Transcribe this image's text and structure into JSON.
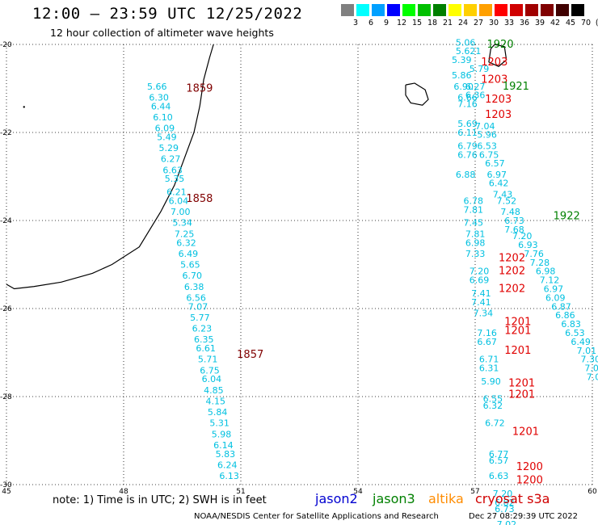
{
  "header": {
    "title": "12:00 – 23:59 UTC 12/25/2022",
    "subtitle": "12 hour collection of altimeter wave heights"
  },
  "colorbar": {
    "unit_label": "(ft)",
    "bins": [
      {
        "label": "3",
        "color": "#808080"
      },
      {
        "label": "6",
        "color": "#00ffff"
      },
      {
        "label": "9",
        "color": "#00a0ff"
      },
      {
        "label": "12",
        "color": "#0000ff"
      },
      {
        "label": "15",
        "color": "#00ff00"
      },
      {
        "label": "18",
        "color": "#00c000"
      },
      {
        "label": "21",
        "color": "#008000"
      },
      {
        "label": "24",
        "color": "#ffff00"
      },
      {
        "label": "27",
        "color": "#ffd000"
      },
      {
        "label": "30",
        "color": "#ffa000"
      },
      {
        "label": "33",
        "color": "#ff0000"
      },
      {
        "label": "36",
        "color": "#d00000"
      },
      {
        "label": "39",
        "color": "#a00000"
      },
      {
        "label": "42",
        "color": "#800000"
      },
      {
        "label": "45",
        "color": "#400000"
      },
      {
        "label": "70",
        "color": "#000000"
      }
    ]
  },
  "map": {
    "lon_range": [
      45,
      60
    ],
    "lat_range": [
      -30,
      -20
    ],
    "lon_ticks": [
      "45",
      "48",
      "51",
      "54",
      "57",
      "60"
    ],
    "lat_ticks": [
      "-20",
      "-22",
      "-24",
      "-26",
      "-28",
      "-30"
    ],
    "colors": {
      "cyan": "#00c0e0",
      "darkred": "#800000",
      "red": "#e00000",
      "green": "#008000"
    },
    "time_labels": [
      {
        "text": "1859",
        "lon": 49.6,
        "lat": -21.0,
        "color": "darkred"
      },
      {
        "text": "1858",
        "lon": 49.6,
        "lat": -23.5,
        "color": "darkred"
      },
      {
        "text": "1857",
        "lon": 50.9,
        "lat": -27.05,
        "color": "darkred"
      },
      {
        "text": "1920",
        "lon": 57.3,
        "lat": -20.0,
        "color": "green"
      },
      {
        "text": "1203",
        "lon": 57.15,
        "lat": -20.4,
        "color": "red"
      },
      {
        "text": "1203",
        "lon": 57.15,
        "lat": -20.8,
        "color": "red"
      },
      {
        "text": "1921",
        "lon": 57.7,
        "lat": -20.95,
        "color": "green"
      },
      {
        "text": "1203",
        "lon": 57.25,
        "lat": -21.25,
        "color": "red"
      },
      {
        "text": "1203",
        "lon": 57.25,
        "lat": -21.6,
        "color": "red"
      },
      {
        "text": "1922",
        "lon": 59.0,
        "lat": -23.9,
        "color": "green"
      },
      {
        "text": "1202",
        "lon": 57.6,
        "lat": -24.85,
        "color": "red"
      },
      {
        "text": "1202",
        "lon": 57.6,
        "lat": -25.15,
        "color": "red"
      },
      {
        "text": "1202",
        "lon": 57.6,
        "lat": -25.55,
        "color": "red"
      },
      {
        "text": "1201",
        "lon": 57.75,
        "lat": -26.3,
        "color": "red"
      },
      {
        "text": "1201",
        "lon": 57.75,
        "lat": -26.5,
        "color": "red"
      },
      {
        "text": "1201",
        "lon": 57.75,
        "lat": -26.95,
        "color": "red"
      },
      {
        "text": "1201",
        "lon": 57.85,
        "lat": -27.7,
        "color": "red"
      },
      {
        "text": "1201",
        "lon": 57.85,
        "lat": -27.95,
        "color": "red"
      },
      {
        "text": "1201",
        "lon": 57.95,
        "lat": -28.8,
        "color": "red"
      },
      {
        "text": "1200",
        "lon": 58.05,
        "lat": -29.6,
        "color": "red"
      },
      {
        "text": "1200",
        "lon": 58.05,
        "lat": -29.9,
        "color": "red"
      }
    ],
    "wave_heights": [
      {
        "text": "5.66",
        "lon": 48.6,
        "lat": -20.95
      },
      {
        "text": "6.30",
        "lon": 48.65,
        "lat": -21.2
      },
      {
        "text": "6.44",
        "lon": 48.7,
        "lat": -21.4
      },
      {
        "text": "6.10",
        "lon": 48.75,
        "lat": -21.65
      },
      {
        "text": "6.09",
        "lon": 48.8,
        "lat": -21.9
      },
      {
        "text": "5.49",
        "lon": 48.85,
        "lat": -22.1
      },
      {
        "text": "5.29",
        "lon": 48.9,
        "lat": -22.35
      },
      {
        "text": "6.27",
        "lon": 48.95,
        "lat": -22.6
      },
      {
        "text": "6.63",
        "lon": 49.0,
        "lat": -22.85
      },
      {
        "text": "5.35",
        "lon": 49.05,
        "lat": -23.05
      },
      {
        "text": "6.21",
        "lon": 49.1,
        "lat": -23.35
      },
      {
        "text": "6.04",
        "lon": 49.15,
        "lat": -23.55
      },
      {
        "text": "7.00",
        "lon": 49.2,
        "lat": -23.8
      },
      {
        "text": "5.34",
        "lon": 49.25,
        "lat": -24.05
      },
      {
        "text": "7.25",
        "lon": 49.3,
        "lat": -24.3
      },
      {
        "text": "6.32",
        "lon": 49.35,
        "lat": -24.5
      },
      {
        "text": "6.49",
        "lon": 49.4,
        "lat": -24.75
      },
      {
        "text": "5.65",
        "lon": 49.45,
        "lat": -25.0
      },
      {
        "text": "6.70",
        "lon": 49.5,
        "lat": -25.25
      },
      {
        "text": "6.38",
        "lon": 49.55,
        "lat": -25.5
      },
      {
        "text": "6.56",
        "lon": 49.6,
        "lat": -25.75
      },
      {
        "text": "7.07",
        "lon": 49.65,
        "lat": -25.95
      },
      {
        "text": "5.77",
        "lon": 49.7,
        "lat": -26.2
      },
      {
        "text": "6.23",
        "lon": 49.75,
        "lat": -26.45
      },
      {
        "text": "6.35",
        "lon": 49.8,
        "lat": -26.7
      },
      {
        "text": "6.61",
        "lon": 49.85,
        "lat": -26.9
      },
      {
        "text": "5.71",
        "lon": 49.9,
        "lat": -27.15
      },
      {
        "text": "6.75",
        "lon": 49.95,
        "lat": -27.4
      },
      {
        "text": "6.04",
        "lon": 50.0,
        "lat": -27.6
      },
      {
        "text": "4.85",
        "lon": 50.05,
        "lat": -27.85
      },
      {
        "text": "4.15",
        "lon": 50.1,
        "lat": -28.1
      },
      {
        "text": "5.84",
        "lon": 50.15,
        "lat": -28.35
      },
      {
        "text": "5.31",
        "lon": 50.2,
        "lat": -28.6
      },
      {
        "text": "5.98",
        "lon": 50.25,
        "lat": -28.85
      },
      {
        "text": "6.14",
        "lon": 50.3,
        "lat": -29.1
      },
      {
        "text": "5.83",
        "lon": 50.35,
        "lat": -29.3
      },
      {
        "text": "6.24",
        "lon": 50.4,
        "lat": -29.55
      },
      {
        "text": "6.13",
        "lon": 50.45,
        "lat": -29.8
      },
      {
        "text": "5.06",
        "lon": 56.5,
        "lat": -19.95
      },
      {
        "text": "5.621",
        "lon": 56.5,
        "lat": -20.15
      },
      {
        "text": "5.39",
        "lon": 56.4,
        "lat": -20.35
      },
      {
        "text": "5.79",
        "lon": 56.85,
        "lat": -20.55
      },
      {
        "text": "5.86",
        "lon": 56.4,
        "lat": -20.7
      },
      {
        "text": "6.90",
        "lon": 56.45,
        "lat": -20.95
      },
      {
        "text": "6.27",
        "lon": 56.75,
        "lat": -20.95
      },
      {
        "text": "6.66",
        "lon": 56.55,
        "lat": -21.2
      },
      {
        "text": "6.36",
        "lon": 56.75,
        "lat": -21.15
      },
      {
        "text": "7.16",
        "lon": 56.55,
        "lat": -21.35
      },
      {
        "text": "5.69",
        "lon": 56.55,
        "lat": -21.8
      },
      {
        "text": "7.04",
        "lon": 57.0,
        "lat": -21.85
      },
      {
        "text": "6.11",
        "lon": 56.55,
        "lat": -22.0
      },
      {
        "text": "5.96",
        "lon": 57.05,
        "lat": -22.05
      },
      {
        "text": "6.79",
        "lon": 56.55,
        "lat": -22.3
      },
      {
        "text": "6.53",
        "lon": 57.05,
        "lat": -22.3
      },
      {
        "text": "6.76",
        "lon": 56.55,
        "lat": -22.5
      },
      {
        "text": "6.75",
        "lon": 57.1,
        "lat": -22.5
      },
      {
        "text": "6.57",
        "lon": 57.25,
        "lat": -22.7
      },
      {
        "text": "6.88",
        "lon": 56.5,
        "lat": -22.95
      },
      {
        "text": "6.97",
        "lon": 57.3,
        "lat": -22.95
      },
      {
        "text": "6.42",
        "lon": 57.35,
        "lat": -23.15
      },
      {
        "text": "7.43",
        "lon": 57.45,
        "lat": -23.4
      },
      {
        "text": "6.78",
        "lon": 56.7,
        "lat": -23.55
      },
      {
        "text": "7.52",
        "lon": 57.55,
        "lat": -23.55
      },
      {
        "text": "7.81",
        "lon": 56.7,
        "lat": -23.75
      },
      {
        "text": "7.48",
        "lon": 57.65,
        "lat": -23.8
      },
      {
        "text": "7.45",
        "lon": 56.7,
        "lat": -24.05
      },
      {
        "text": "6.73",
        "lon": 57.75,
        "lat": -24.0
      },
      {
        "text": "7.68",
        "lon": 57.75,
        "lat": -24.2
      },
      {
        "text": "7.81",
        "lon": 56.75,
        "lat": -24.3
      },
      {
        "text": "7.20",
        "lon": 57.95,
        "lat": -24.35
      },
      {
        "text": "6.98",
        "lon": 56.75,
        "lat": -24.5
      },
      {
        "text": "6.93",
        "lon": 58.1,
        "lat": -24.55
      },
      {
        "text": "7.33",
        "lon": 56.75,
        "lat": -24.75
      },
      {
        "text": "7.76",
        "lon": 58.25,
        "lat": -24.75
      },
      {
        "text": "7.28",
        "lon": 58.4,
        "lat": -24.95
      },
      {
        "text": "7.20",
        "lon": 56.85,
        "lat": -25.15
      },
      {
        "text": "6.98",
        "lon": 58.55,
        "lat": -25.15
      },
      {
        "text": "6.69",
        "lon": 56.85,
        "lat": -25.35
      },
      {
        "text": "7.12",
        "lon": 58.65,
        "lat": -25.35
      },
      {
        "text": "6.97",
        "lon": 58.75,
        "lat": -25.55
      },
      {
        "text": "7.41",
        "lon": 56.9,
        "lat": -25.65
      },
      {
        "text": "6.09",
        "lon": 58.8,
        "lat": -25.75
      },
      {
        "text": "7.41",
        "lon": 56.9,
        "lat": -25.85
      },
      {
        "text": "6.87",
        "lon": 58.95,
        "lat": -25.95
      },
      {
        "text": "7.34",
        "lon": 56.95,
        "lat": -26.1
      },
      {
        "text": "6.86",
        "lon": 59.05,
        "lat": -26.15
      },
      {
        "text": "6.83",
        "lon": 59.2,
        "lat": -26.35
      },
      {
        "text": "7.16",
        "lon": 57.05,
        "lat": -26.55
      },
      {
        "text": "6.53",
        "lon": 59.3,
        "lat": -26.55
      },
      {
        "text": "6.67",
        "lon": 57.05,
        "lat": -26.75
      },
      {
        "text": "6.49",
        "lon": 59.45,
        "lat": -26.75
      },
      {
        "text": "7.01",
        "lon": 59.6,
        "lat": -26.95
      },
      {
        "text": "6.71",
        "lon": 57.1,
        "lat": -27.15
      },
      {
        "text": "7.30",
        "lon": 59.7,
        "lat": -27.15
      },
      {
        "text": "6.31",
        "lon": 57.1,
        "lat": -27.35
      },
      {
        "text": "7.06",
        "lon": 59.8,
        "lat": -27.35
      },
      {
        "text": "7.0",
        "lon": 59.85,
        "lat": -27.55
      },
      {
        "text": "5.90",
        "lon": 57.15,
        "lat": -27.65
      },
      {
        "text": "6.55",
        "lon": 57.2,
        "lat": -28.05
      },
      {
        "text": "6.32",
        "lon": 57.2,
        "lat": -28.2
      },
      {
        "text": "6.72",
        "lon": 57.25,
        "lat": -28.6
      },
      {
        "text": "6.77",
        "lon": 57.35,
        "lat": -29.3
      },
      {
        "text": "6.57",
        "lon": 57.35,
        "lat": -29.45
      },
      {
        "text": "6.63",
        "lon": 57.35,
        "lat": -29.8
      },
      {
        "text": "7.20",
        "lon": 57.45,
        "lat": -30.2
      },
      {
        "text": "6.82",
        "lon": 57.5,
        "lat": -30.4
      },
      {
        "text": "6.73",
        "lon": 57.5,
        "lat": -30.55
      },
      {
        "text": "7.02",
        "lon": 57.55,
        "lat": -30.9
      }
    ]
  },
  "footer": {
    "note": "note:  1) Time is in UTC;  2) SWH is in feet",
    "legend": {
      "jason2": "jason2",
      "jason3": "jason3",
      "altika": "altika",
      "cryosat": "cryosat s3a"
    },
    "credit": "NOAA/NESDIS Center for Satellite Applications and Research",
    "timestamp": "Dec 27 08:29:39 UTC 2022"
  }
}
